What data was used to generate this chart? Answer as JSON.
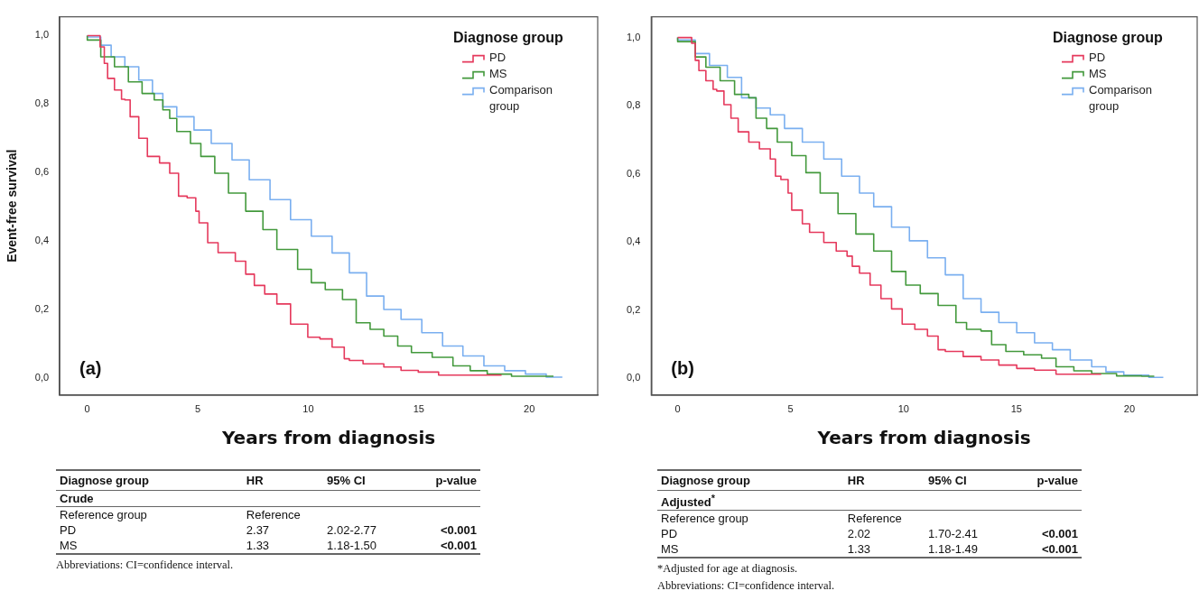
{
  "chart_data": [
    {
      "type": "step",
      "xlabel": "Years from diagnosis",
      "ylabel": "Event-free survival",
      "legend_title": "Diagnose group",
      "legend": "top right",
      "grid": false,
      "xlim": [
        -1.25,
        23.1
      ],
      "xticks": [
        0,
        5,
        10,
        15,
        20
      ],
      "ylim": [
        -0.05,
        1.055
      ],
      "yticks": [
        {
          "value": 0,
          "label": "0,0"
        },
        {
          "value": 0.2,
          "label": "0,2"
        },
        {
          "value": 0.4,
          "label": "0,4"
        },
        {
          "value": 0.6,
          "label": "0,6"
        },
        {
          "value": 0.8,
          "label": "0,8"
        },
        {
          "value": 1,
          "label": "1,0"
        }
      ],
      "series": [
        {
          "name": "PD",
          "color": "#e5395c",
          "x": [
            0,
            0.58,
            0.77,
            0.92,
            1.23,
            1.55,
            1.7,
            1.94,
            2.33,
            2.72,
            3.27,
            3.73,
            4.13,
            4.52,
            4.91,
            5.06,
            5.45,
            5.92,
            6.7,
            7.17,
            7.56,
            8.03,
            8.58,
            9.2,
            9.98,
            10.53,
            11.08,
            11.63,
            11.86,
            12.48,
            13.42,
            14.2,
            14.98,
            15.9,
            17.0,
            18.75
          ],
          "values": [
            1,
            1,
            0.967,
            0.919,
            0.875,
            0.841,
            0.814,
            0.812,
            0.763,
            0.7,
            0.647,
            0.628,
            0.598,
            0.531,
            0.526,
            0.487,
            0.453,
            0.395,
            0.366,
            0.341,
            0.303,
            0.27,
            0.245,
            0.216,
            0.157,
            0.119,
            0.114,
            0.09,
            0.056,
            0.051,
            0.041,
            0.032,
            0.022,
            0.017,
            0.008,
            0.008
          ]
        },
        {
          "name": "MS",
          "color": "#43993c",
          "x": [
            0,
            0.61,
            1.23,
            1.86,
            2.48,
            3.03,
            3.42,
            3.73,
            4.05,
            4.67,
            5.14,
            5.77,
            6.39,
            7.17,
            7.95,
            8.58,
            9.52,
            10.14,
            10.77,
            11.55,
            12.17,
            12.8,
            13.42,
            14.05,
            14.67,
            15.61,
            16.55,
            17.33,
            18.1,
            19.2,
            20.45,
            21.1
          ],
          "values": [
            1,
            0.987,
            0.938,
            0.909,
            0.865,
            0.831,
            0.812,
            0.783,
            0.758,
            0.72,
            0.685,
            0.647,
            0.598,
            0.54,
            0.487,
            0.433,
            0.375,
            0.317,
            0.278,
            0.258,
            0.229,
            0.161,
            0.142,
            0.122,
            0.093,
            0.074,
            0.06,
            0.035,
            0.021,
            0.011,
            0.005,
            0.005
          ]
        },
        {
          "name": "Comparison group",
          "color": "#7aaff0",
          "x": [
            0,
            0.61,
            1.08,
            1.7,
            2.33,
            2.95,
            3.42,
            4.05,
            4.83,
            5.61,
            6.55,
            7.33,
            8.27,
            9.2,
            10.14,
            11.08,
            11.86,
            12.64,
            13.42,
            14.2,
            15.14,
            16.08,
            17.0,
            17.95,
            18.89,
            19.83,
            20.77,
            21.5
          ],
          "values": [
            1,
            0.996,
            0.972,
            0.938,
            0.909,
            0.87,
            0.831,
            0.792,
            0.763,
            0.724,
            0.685,
            0.637,
            0.579,
            0.521,
            0.462,
            0.414,
            0.365,
            0.307,
            0.239,
            0.2,
            0.171,
            0.132,
            0.093,
            0.064,
            0.035,
            0.021,
            0.011,
            0.002
          ]
        }
      ],
      "annotations": [
        "(a)",
        "Diagnose group",
        "HR",
        "95% CI",
        "p-value",
        "Crude",
        "Reference group",
        "Reference",
        "PD",
        "2.37",
        "2.02-2.77",
        "<0.001",
        "MS",
        "1.33",
        "1.18-1.50",
        "<0.001",
        "Abbreviations: CI=confidence interval."
      ]
    },
    {
      "type": "step",
      "xlabel": "Years from diagnosis",
      "legend_title": "Diagnose group",
      "legend": "top right",
      "grid": false,
      "xlim": [
        -1.17,
        23.0
      ],
      "xticks": [
        0,
        5,
        10,
        15,
        20
      ],
      "ylim": [
        -0.05,
        1.061
      ],
      "yticks": [
        {
          "value": 0,
          "label": "0,0"
        },
        {
          "value": 0.2,
          "label": "0,2"
        },
        {
          "value": 0.4,
          "label": "0,4"
        },
        {
          "value": 0.6,
          "label": "0,6"
        },
        {
          "value": 0.8,
          "label": "0,8"
        },
        {
          "value": 1,
          "label": "1,0"
        }
      ],
      "series": [
        {
          "name": "PD",
          "color": "#e5395c",
          "x": [
            0,
            0.62,
            0.78,
            0.94,
            1.25,
            1.57,
            1.73,
            2.05,
            2.36,
            2.68,
            3.15,
            3.62,
            4.1,
            4.33,
            4.57,
            4.89,
            5.05,
            5.52,
            5.84,
            6.47,
            7.02,
            7.5,
            7.73,
            8.05,
            8.52,
            9.0,
            9.47,
            9.94,
            10.5,
            11.06,
            11.53,
            11.85,
            12.64,
            13.43,
            14.22,
            15.01,
            15.8,
            16.75,
            16.9,
            18.75
          ],
          "values": [
            1,
            1,
            0.983,
            0.933,
            0.903,
            0.873,
            0.848,
            0.843,
            0.803,
            0.763,
            0.723,
            0.693,
            0.673,
            0.643,
            0.593,
            0.583,
            0.543,
            0.493,
            0.453,
            0.428,
            0.398,
            0.373,
            0.358,
            0.328,
            0.308,
            0.273,
            0.233,
            0.203,
            0.158,
            0.143,
            0.123,
            0.083,
            0.078,
            0.063,
            0.053,
            0.038,
            0.028,
            0.023,
            0.011,
            0.011
          ]
        },
        {
          "name": "MS",
          "color": "#43993c",
          "x": [
            0,
            0.78,
            1.25,
            1.88,
            2.52,
            3.15,
            3.47,
            3.94,
            4.41,
            5.05,
            5.68,
            6.31,
            7.1,
            7.89,
            8.68,
            9.47,
            10.1,
            10.74,
            11.53,
            12.32,
            12.79,
            13.43,
            13.9,
            14.53,
            15.32,
            16.11,
            16.75,
            17.54,
            18.33,
            19.43,
            20.54,
            21.1
          ],
          "values": [
            1,
            0.988,
            0.943,
            0.913,
            0.873,
            0.833,
            0.823,
            0.763,
            0.733,
            0.693,
            0.653,
            0.603,
            0.543,
            0.483,
            0.423,
            0.373,
            0.313,
            0.273,
            0.248,
            0.213,
            0.163,
            0.143,
            0.138,
            0.098,
            0.078,
            0.068,
            0.058,
            0.033,
            0.021,
            0.013,
            0.006,
            0.005
          ]
        },
        {
          "name": "Comparison group",
          "color": "#7aaff0",
          "x": [
            0,
            0.78,
            1.41,
            2.2,
            2.83,
            3.47,
            4.1,
            4.73,
            5.52,
            6.47,
            7.26,
            8.05,
            8.68,
            9.47,
            10.26,
            11.06,
            11.85,
            12.64,
            13.43,
            14.22,
            15.01,
            15.8,
            16.59,
            17.38,
            18.33,
            18.96,
            19.75,
            20.86,
            21.5
          ],
          "values": [
            1,
            0.993,
            0.953,
            0.918,
            0.883,
            0.823,
            0.793,
            0.773,
            0.733,
            0.693,
            0.643,
            0.593,
            0.543,
            0.503,
            0.443,
            0.403,
            0.353,
            0.303,
            0.233,
            0.193,
            0.163,
            0.133,
            0.103,
            0.083,
            0.053,
            0.033,
            0.018,
            0.008,
            0.002
          ]
        }
      ],
      "annotations": [
        "(b)",
        "Diagnose group",
        "HR",
        "95% CI",
        "p-value",
        "Adjusted$^{*}$",
        "Reference group",
        "Reference",
        "PD",
        "2.02",
        "1.70-2.41",
        "<0.001",
        "MS",
        "1.33",
        "1.18-1.49",
        "<0.001",
        "*Adjusted for age at diagnosis.",
        "Abbreviations: CI=confidence interval."
      ]
    }
  ]
}
